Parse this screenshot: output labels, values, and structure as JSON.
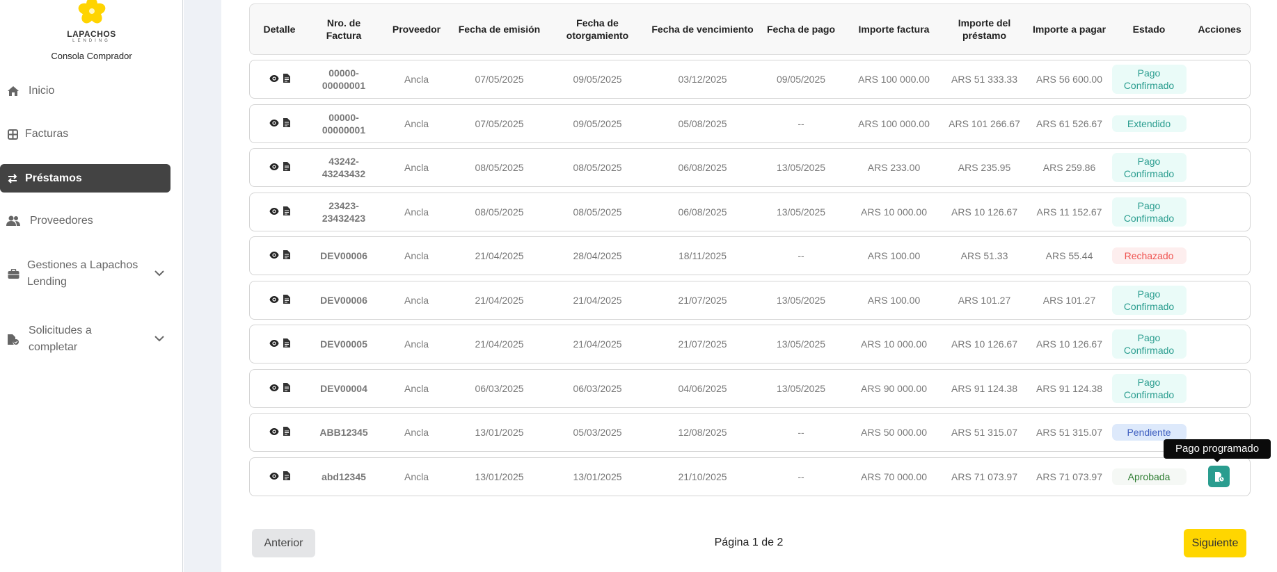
{
  "sidebar": {
    "brand": "LAPACHOS",
    "brand_sub": "LENDING",
    "console": "Consola Comprador",
    "items": [
      {
        "label": "Inicio",
        "icon": "home-icon"
      },
      {
        "label": "Facturas",
        "icon": "grid-icon"
      },
      {
        "label": "Préstamos",
        "icon": "swap-icon",
        "active": true
      },
      {
        "label": "Proveedores",
        "icon": "users-icon"
      },
      {
        "label": "Gestiones a Lapachos Lending",
        "icon": "briefcase-icon",
        "expandable": true
      },
      {
        "label": "Solicitudes a completar",
        "icon": "file-check-icon",
        "expandable": true
      }
    ]
  },
  "table": {
    "headers": [
      "Detalle",
      "Nro. de Factura",
      "Proveedor",
      "Fecha de emisión",
      "Fecha de otorgamiento",
      "Fecha de vencimiento",
      "Fecha de pago",
      "Importe factura",
      "Importe del préstamo",
      "Importe a pagar",
      "Estado",
      "Acciones"
    ],
    "rows": [
      {
        "nro": "00000-00000001",
        "proveedor": "Ancla",
        "emision": "07/05/2025",
        "otorgamiento": "09/05/2025",
        "vencimiento": "03/12/2025",
        "pago": "09/05/2025",
        "factura": "ARS 100 000.00",
        "prestamo": "ARS 51 333.33",
        "pagar": "ARS 56 600.00",
        "estado": "Pago Confirmado",
        "tipo": "confirmado"
      },
      {
        "nro": "00000-00000001",
        "proveedor": "Ancla",
        "emision": "07/05/2025",
        "otorgamiento": "09/05/2025",
        "vencimiento": "05/08/2025",
        "pago": "--",
        "factura": "ARS 100 000.00",
        "prestamo": "ARS 101 266.67",
        "pagar": "ARS 61 526.67",
        "estado": "Extendido",
        "tipo": "confirmado"
      },
      {
        "nro": "43242-43243432",
        "proveedor": "Ancla",
        "emision": "08/05/2025",
        "otorgamiento": "08/05/2025",
        "vencimiento": "06/08/2025",
        "pago": "13/05/2025",
        "factura": "ARS 233.00",
        "prestamo": "ARS 235.95",
        "pagar": "ARS 259.86",
        "estado": "Pago Confirmado",
        "tipo": "confirmado"
      },
      {
        "nro": "23423-23432423",
        "proveedor": "Ancla",
        "emision": "08/05/2025",
        "otorgamiento": "08/05/2025",
        "vencimiento": "06/08/2025",
        "pago": "13/05/2025",
        "factura": "ARS 10 000.00",
        "prestamo": "ARS 10 126.67",
        "pagar": "ARS 11 152.67",
        "estado": "Pago Confirmado",
        "tipo": "confirmado"
      },
      {
        "nro": "DEV00006",
        "proveedor": "Ancla",
        "emision": "21/04/2025",
        "otorgamiento": "28/04/2025",
        "vencimiento": "18/11/2025",
        "pago": "--",
        "factura": "ARS 100.00",
        "prestamo": "ARS 51.33",
        "pagar": "ARS 55.44",
        "estado": "Rechazado",
        "tipo": "rechazado"
      },
      {
        "nro": "DEV00006",
        "proveedor": "Ancla",
        "emision": "21/04/2025",
        "otorgamiento": "21/04/2025",
        "vencimiento": "21/07/2025",
        "pago": "13/05/2025",
        "factura": "ARS 100.00",
        "prestamo": "ARS 101.27",
        "pagar": "ARS 101.27",
        "estado": "Pago Confirmado",
        "tipo": "confirmado"
      },
      {
        "nro": "DEV00005",
        "proveedor": "Ancla",
        "emision": "21/04/2025",
        "otorgamiento": "21/04/2025",
        "vencimiento": "21/07/2025",
        "pago": "13/05/2025",
        "factura": "ARS 10 000.00",
        "prestamo": "ARS 10 126.67",
        "pagar": "ARS 10 126.67",
        "estado": "Pago Confirmado",
        "tipo": "confirmado"
      },
      {
        "nro": "DEV00004",
        "proveedor": "Ancla",
        "emision": "06/03/2025",
        "otorgamiento": "06/03/2025",
        "vencimiento": "04/06/2025",
        "pago": "13/05/2025",
        "factura": "ARS 90 000.00",
        "prestamo": "ARS 91 124.38",
        "pagar": "ARS 91 124.38",
        "estado": "Pago Confirmado",
        "tipo": "confirmado"
      },
      {
        "nro": "ABB12345",
        "proveedor": "Ancla",
        "emision": "13/01/2025",
        "otorgamiento": "05/03/2025",
        "vencimiento": "12/08/2025",
        "pago": "--",
        "factura": "ARS 50 000.00",
        "prestamo": "ARS 51 315.07",
        "pagar": "ARS 51 315.07",
        "estado": "Pendiente",
        "tipo": "pendiente"
      },
      {
        "nro": "abd12345",
        "proveedor": "Ancla",
        "emision": "13/01/2025",
        "otorgamiento": "13/01/2025",
        "vencimiento": "21/10/2025",
        "pago": "--",
        "factura": "ARS 70 000.00",
        "prestamo": "ARS 71 073.97",
        "pagar": "ARS 71 073.97",
        "estado": "Aprobada",
        "tipo": "aprobada",
        "action": "schedule-payment-icon"
      }
    ]
  },
  "status_colors": {
    "confirmado": {
      "bg": "#eafbf8",
      "fg": "#2a9d8f"
    },
    "rechazado": {
      "bg": "#fdeeee",
      "fg": "#ef5350"
    },
    "pendiente": {
      "bg": "#dde9fb",
      "fg": "#3f5fc0"
    },
    "aprobada": {
      "bg": "#f5f8f5",
      "fg": "#2e7d32"
    }
  },
  "tooltip": "Pago programado",
  "pagination": {
    "prev": "Anterior",
    "info": "Página 1 de 2",
    "next": "Siguiente"
  },
  "colors": {
    "accent": "#ffd600",
    "active_nav": "#434343",
    "action": "#2a9d8f"
  }
}
